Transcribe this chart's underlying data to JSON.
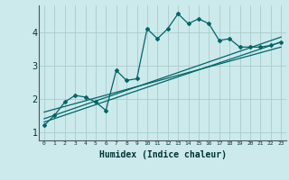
{
  "xlabel": "Humidex (Indice chaleur)",
  "bg_color": "#cce9ec",
  "grid_color": "#aacccc",
  "line_color": "#006666",
  "xlim": [
    -0.5,
    23.5
  ],
  "ylim": [
    0.75,
    4.8
  ],
  "xticks": [
    0,
    1,
    2,
    3,
    4,
    5,
    6,
    7,
    8,
    9,
    10,
    11,
    12,
    13,
    14,
    15,
    16,
    17,
    18,
    19,
    20,
    21,
    22,
    23
  ],
  "yticks": [
    1,
    2,
    3,
    4
  ],
  "curve1_x": [
    0,
    1,
    2,
    3,
    4,
    5,
    6,
    7,
    8,
    9,
    10,
    11,
    12,
    13,
    14,
    15,
    16,
    17,
    18,
    19,
    20,
    21,
    22,
    23
  ],
  "curve1_y": [
    1.2,
    1.5,
    1.9,
    2.1,
    2.05,
    1.9,
    1.65,
    2.85,
    2.55,
    2.6,
    4.1,
    3.8,
    4.1,
    4.55,
    4.25,
    4.4,
    4.25,
    3.75,
    3.8,
    3.55,
    3.55,
    3.55,
    3.6,
    3.7
  ],
  "line2_x": [
    0,
    23
  ],
  "line2_y": [
    1.3,
    3.7
  ],
  "line3_x": [
    0,
    23
  ],
  "line3_y": [
    1.6,
    3.55
  ],
  "line4_x": [
    0,
    23
  ],
  "line4_y": [
    1.4,
    3.85
  ]
}
